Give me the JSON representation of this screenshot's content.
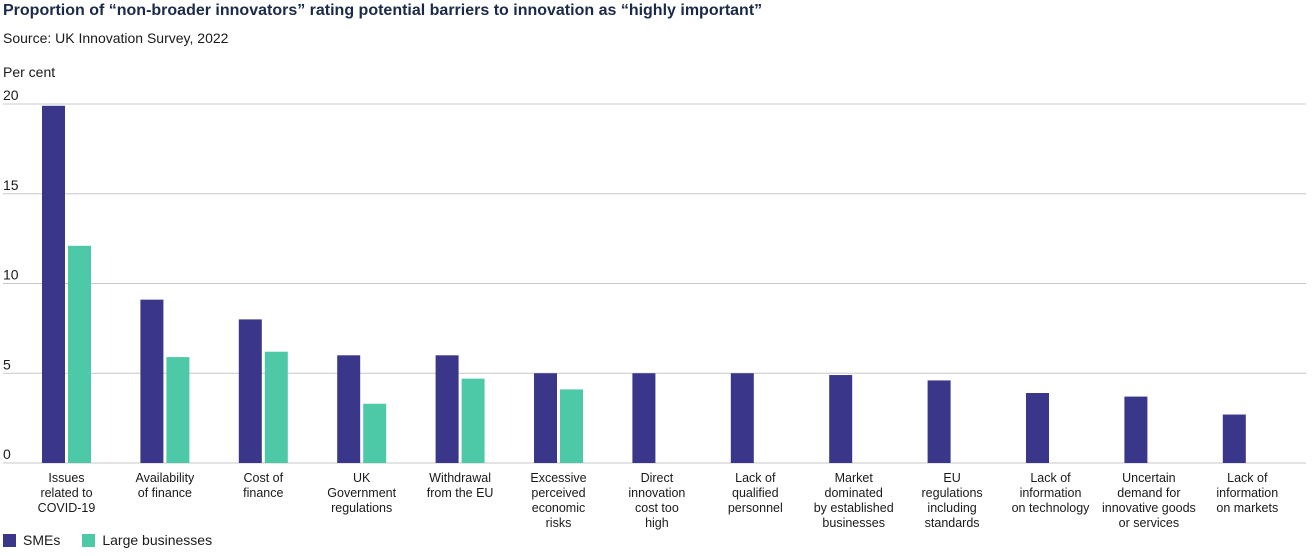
{
  "title": "Proportion of “non-broader innovators” rating potential barriers to innovation as “highly important”",
  "subtitle": "Source: UK Innovation Survey, 2022",
  "colors": {
    "smes": "#3a3689",
    "large": "#4ec9a8",
    "grid": "#c8c8c8"
  },
  "chart_data": {
    "type": "bar",
    "ylabel": "Per cent",
    "ylim": [
      0,
      20
    ],
    "yticks": [
      0,
      5,
      10,
      15,
      20
    ],
    "grid": true,
    "legend_position": "bottom-left",
    "categories": [
      [
        "Issues",
        "related to",
        "COVID-19"
      ],
      [
        "Availability",
        "of finance"
      ],
      [
        "Cost of",
        "finance"
      ],
      [
        "UK",
        "Government",
        "regulations"
      ],
      [
        "Withdrawal",
        "from the EU"
      ],
      [
        "Excessive",
        "perceived",
        "economic",
        "risks"
      ],
      [
        "Direct",
        "innovation",
        "cost too",
        "high"
      ],
      [
        "Lack of",
        "qualified",
        "personnel"
      ],
      [
        "Market",
        "dominated",
        "by established",
        "businesses"
      ],
      [
        "EU",
        "regulations",
        "including",
        "standards"
      ],
      [
        "Lack of",
        "information",
        "on technology"
      ],
      [
        "Uncertain",
        "demand for",
        "innovative goods",
        "or services"
      ],
      [
        "Lack of",
        "information",
        "on markets"
      ]
    ],
    "series": [
      {
        "name": "SMEs",
        "values": [
          19.9,
          9.1,
          8.0,
          6.0,
          6.0,
          5.0,
          5.0,
          5.0,
          4.9,
          4.6,
          3.9,
          3.7,
          2.7
        ]
      },
      {
        "name": "Large businesses",
        "values": [
          12.1,
          5.9,
          6.2,
          3.3,
          4.7,
          4.1,
          null,
          null,
          null,
          null,
          null,
          null,
          null
        ]
      }
    ]
  }
}
